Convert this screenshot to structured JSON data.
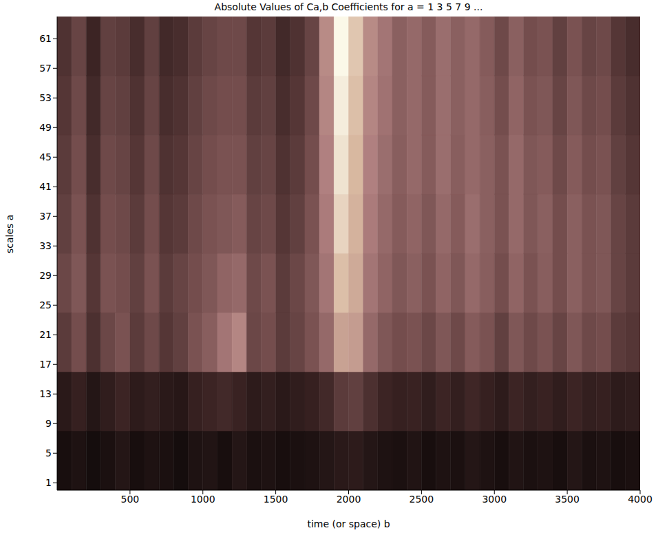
{
  "chart_data": {
    "type": "heatmap",
    "title": "Absolute Values of Ca,b Coefficients for a = 1 3 5 7 9 ...",
    "x_label": "time (or space) b",
    "y_label": "scales a",
    "xlim": [
      0,
      4000
    ],
    "xticks": [
      500,
      1000,
      1500,
      2000,
      2500,
      3000,
      3500,
      4000
    ],
    "ylim": [
      0,
      64
    ],
    "yticks": [
      1,
      5,
      9,
      13,
      17,
      21,
      25,
      29,
      33,
      37,
      41,
      45,
      49,
      53,
      57,
      61
    ],
    "colors": [
      "#000000",
      "#3c2424",
      "#7a5252",
      "#b08080",
      "#d8b8a0",
      "#fffff0"
    ],
    "zlim": [
      0,
      1
    ],
    "cells": {
      "x_edges": [
        0,
        100,
        200,
        300,
        400,
        500,
        600,
        700,
        800,
        900,
        1000,
        1100,
        1200,
        1300,
        1400,
        1500,
        1600,
        1700,
        1800,
        1900,
        2000,
        2100,
        2200,
        2300,
        2400,
        2500,
        2600,
        2700,
        2800,
        2900,
        3000,
        3100,
        3200,
        3300,
        3400,
        3500,
        3600,
        3700,
        3800,
        3900,
        4000
      ],
      "y_edges": [
        0,
        8,
        16,
        24,
        32,
        40,
        48,
        56,
        64
      ],
      "values": [
        [
          0.08,
          0.1,
          0.07,
          0.09,
          0.12,
          0.08,
          0.1,
          0.09,
          0.07,
          0.1,
          0.11,
          0.08,
          0.12,
          0.09,
          0.1,
          0.08,
          0.09,
          0.1,
          0.12,
          0.14,
          0.15,
          0.12,
          0.1,
          0.09,
          0.11,
          0.08,
          0.1,
          0.09,
          0.12,
          0.1,
          0.08,
          0.11,
          0.09,
          0.1,
          0.08,
          0.12,
          0.09,
          0.1,
          0.08,
          0.09
        ],
        [
          0.14,
          0.18,
          0.12,
          0.16,
          0.2,
          0.15,
          0.17,
          0.14,
          0.13,
          0.18,
          0.2,
          0.22,
          0.19,
          0.15,
          0.17,
          0.14,
          0.16,
          0.18,
          0.22,
          0.3,
          0.32,
          0.25,
          0.2,
          0.18,
          0.19,
          0.16,
          0.2,
          0.17,
          0.21,
          0.18,
          0.15,
          0.2,
          0.17,
          0.19,
          0.16,
          0.2,
          0.17,
          0.18,
          0.15,
          0.16
        ],
        [
          0.3,
          0.38,
          0.25,
          0.35,
          0.4,
          0.3,
          0.36,
          0.28,
          0.32,
          0.4,
          0.45,
          0.55,
          0.62,
          0.35,
          0.38,
          0.3,
          0.34,
          0.4,
          0.5,
          0.72,
          0.7,
          0.5,
          0.42,
          0.38,
          0.4,
          0.35,
          0.42,
          0.36,
          0.44,
          0.4,
          0.32,
          0.42,
          0.36,
          0.4,
          0.34,
          0.42,
          0.36,
          0.38,
          0.3,
          0.28
        ],
        [
          0.35,
          0.42,
          0.28,
          0.4,
          0.38,
          0.32,
          0.4,
          0.3,
          0.34,
          0.38,
          0.42,
          0.48,
          0.5,
          0.36,
          0.4,
          0.3,
          0.35,
          0.42,
          0.55,
          0.82,
          0.75,
          0.55,
          0.48,
          0.42,
          0.46,
          0.4,
          0.48,
          0.42,
          0.5,
          0.45,
          0.38,
          0.48,
          0.4,
          0.45,
          0.38,
          0.46,
          0.4,
          0.42,
          0.34,
          0.3
        ],
        [
          0.32,
          0.4,
          0.26,
          0.38,
          0.36,
          0.3,
          0.38,
          0.28,
          0.3,
          0.36,
          0.4,
          0.42,
          0.44,
          0.34,
          0.36,
          0.28,
          0.32,
          0.4,
          0.58,
          0.88,
          0.78,
          0.58,
          0.5,
          0.44,
          0.48,
          0.42,
          0.5,
          0.44,
          0.52,
          0.46,
          0.4,
          0.5,
          0.42,
          0.46,
          0.38,
          0.46,
          0.4,
          0.42,
          0.34,
          0.3
        ],
        [
          0.3,
          0.38,
          0.24,
          0.36,
          0.34,
          0.28,
          0.36,
          0.26,
          0.28,
          0.34,
          0.38,
          0.4,
          0.4,
          0.32,
          0.34,
          0.26,
          0.3,
          0.38,
          0.6,
          0.92,
          0.8,
          0.6,
          0.52,
          0.45,
          0.5,
          0.44,
          0.52,
          0.45,
          0.5,
          0.46,
          0.4,
          0.5,
          0.42,
          0.44,
          0.36,
          0.44,
          0.38,
          0.4,
          0.32,
          0.28
        ],
        [
          0.28,
          0.36,
          0.22,
          0.34,
          0.32,
          0.26,
          0.34,
          0.24,
          0.26,
          0.32,
          0.36,
          0.38,
          0.38,
          0.3,
          0.32,
          0.24,
          0.28,
          0.36,
          0.62,
          0.95,
          0.82,
          0.62,
          0.54,
          0.46,
          0.5,
          0.44,
          0.52,
          0.46,
          0.5,
          0.45,
          0.38,
          0.48,
          0.4,
          0.42,
          0.34,
          0.42,
          0.36,
          0.38,
          0.3,
          0.26
        ],
        [
          0.26,
          0.34,
          0.2,
          0.32,
          0.3,
          0.24,
          0.32,
          0.22,
          0.24,
          0.3,
          0.34,
          0.36,
          0.36,
          0.28,
          0.3,
          0.22,
          0.26,
          0.34,
          0.64,
          0.98,
          0.84,
          0.64,
          0.55,
          0.46,
          0.5,
          0.44,
          0.52,
          0.46,
          0.5,
          0.44,
          0.36,
          0.46,
          0.38,
          0.4,
          0.32,
          0.4,
          0.34,
          0.36,
          0.28,
          0.24
        ]
      ]
    }
  }
}
